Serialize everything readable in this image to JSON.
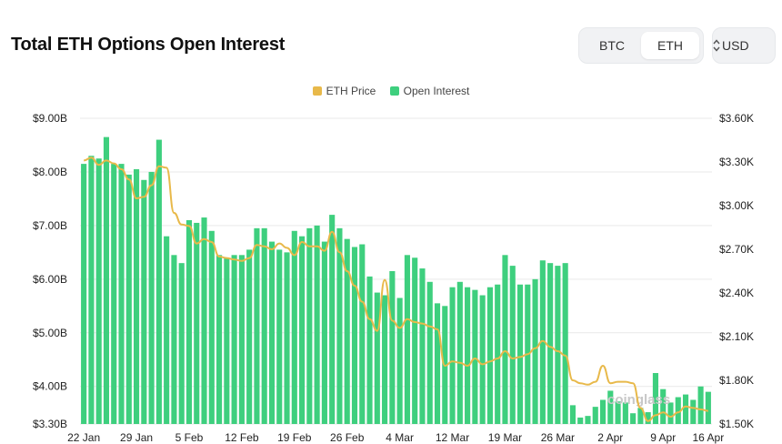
{
  "header": {
    "title": "Total ETH Options Open Interest",
    "asset_tabs": [
      {
        "label": "BTC",
        "selected": false
      },
      {
        "label": "ETH",
        "selected": true
      }
    ],
    "currency": "USD"
  },
  "colors": {
    "open_interest": "#3ecf7e",
    "eth_price": "#e8b94a",
    "grid": "#e9e9e9"
  },
  "watermark": "coinglass",
  "chart_data": {
    "type": "bar",
    "title": "Total ETH Options Open Interest",
    "legend": [
      "ETH Price",
      "Open Interest"
    ],
    "legend_position": "top-center",
    "x_tick_labels": [
      "22 Jan",
      "29 Jan",
      "5 Feb",
      "12 Feb",
      "19 Feb",
      "26 Feb",
      "4 Mar",
      "12 Mar",
      "19 Mar",
      "26 Mar",
      "2 Apr",
      "9 Apr",
      "16 Apr"
    ],
    "y_left": {
      "label": "",
      "ticks": [
        "$3.30B",
        "$4.00B",
        "$5.00B",
        "$6.00B",
        "$7.00B",
        "$8.00B",
        "$9.00B"
      ],
      "range": [
        3.3,
        9.0
      ],
      "unit": "B USD"
    },
    "y_right": {
      "label": "",
      "ticks": [
        "$1.50K",
        "$1.80K",
        "$2.10K",
        "$2.40K",
        "$2.70K",
        "$3.00K",
        "$3.30K",
        "$3.60K"
      ],
      "range": [
        1.5,
        3.6
      ],
      "unit": "K USD"
    },
    "grid": true,
    "series": [
      {
        "name": "Open Interest",
        "type": "bar",
        "axis": "left",
        "values": [
          8.15,
          8.3,
          8.25,
          8.65,
          8.15,
          8.15,
          7.95,
          8.05,
          7.85,
          8.0,
          8.6,
          6.8,
          6.45,
          6.3,
          7.1,
          7.05,
          7.15,
          6.9,
          6.45,
          6.4,
          6.45,
          6.45,
          6.55,
          6.95,
          6.95,
          6.7,
          6.55,
          6.5,
          6.9,
          6.8,
          6.95,
          7.0,
          6.7,
          7.2,
          6.95,
          6.75,
          6.6,
          6.65,
          6.05,
          5.75,
          5.7,
          6.15,
          5.65,
          6.45,
          6.4,
          6.2,
          5.95,
          5.55,
          5.5,
          5.85,
          5.95,
          5.85,
          5.8,
          5.7,
          5.85,
          5.9,
          6.45,
          6.25,
          5.9,
          5.9,
          6.0,
          6.35,
          6.3,
          6.25,
          6.3,
          3.65,
          3.42,
          3.45,
          3.62,
          3.75,
          3.92,
          3.72,
          3.7,
          3.5,
          3.6,
          3.52,
          4.25,
          3.95,
          3.7,
          3.8,
          3.85,
          3.75,
          4.0,
          3.9
        ]
      },
      {
        "name": "ETH Price",
        "type": "line",
        "axis": "right",
        "values": [
          3.31,
          3.33,
          3.28,
          3.31,
          3.29,
          3.25,
          3.18,
          3.05,
          3.06,
          3.14,
          3.27,
          3.26,
          2.95,
          2.87,
          2.86,
          2.74,
          2.77,
          2.75,
          2.65,
          2.64,
          2.63,
          2.62,
          2.64,
          2.73,
          2.72,
          2.7,
          2.74,
          2.71,
          2.66,
          2.75,
          2.72,
          2.72,
          2.69,
          2.82,
          2.68,
          2.55,
          2.45,
          2.34,
          2.22,
          2.14,
          2.49,
          2.21,
          2.16,
          2.22,
          2.2,
          2.19,
          2.17,
          2.15,
          1.9,
          1.93,
          1.92,
          1.9,
          1.95,
          1.91,
          1.93,
          1.95,
          2.0,
          1.95,
          1.96,
          1.98,
          2.02,
          2.07,
          2.03,
          2.0,
          1.97,
          1.8,
          1.78,
          1.77,
          1.79,
          1.9,
          1.78,
          1.79,
          1.79,
          1.78,
          1.61,
          1.52,
          1.56,
          1.58,
          1.55,
          1.58,
          1.62,
          1.61,
          1.6,
          1.59
        ]
      }
    ]
  }
}
